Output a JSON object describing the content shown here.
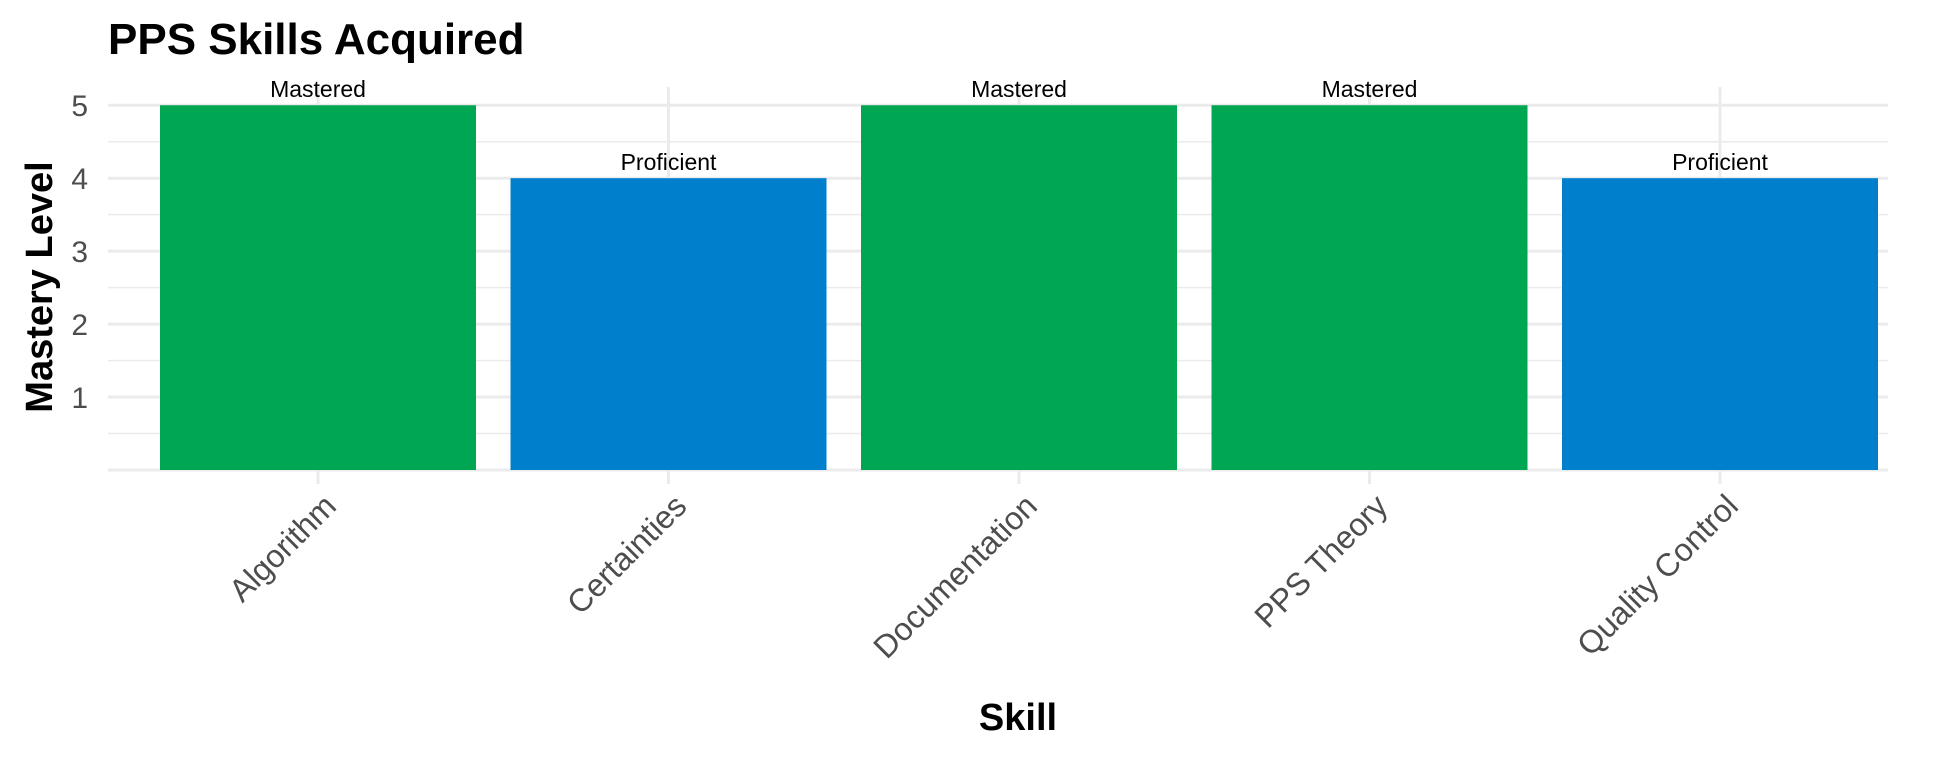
{
  "chart_data": {
    "type": "bar",
    "title": "PPS Skills Acquired",
    "xlabel": "Skill",
    "ylabel": "Mastery Level",
    "categories": [
      "Algorithm",
      "Certainties",
      "Documentation",
      "PPS Theory",
      "Quality Control"
    ],
    "values": [
      5,
      4,
      5,
      5,
      4
    ],
    "bar_labels": [
      "Mastered",
      "Proficient",
      "Mastered",
      "Mastered",
      "Proficient"
    ],
    "bar_colors": [
      "#00A651",
      "#0080CC",
      "#00A651",
      "#00A651",
      "#0080CC"
    ],
    "yticks": [
      1,
      2,
      3,
      4,
      5
    ],
    "ylim": [
      0,
      5.25
    ],
    "grid": true,
    "legend": "none"
  },
  "colors": {
    "mastered": "#00A651",
    "proficient": "#0080CC",
    "grid": "#EBEBEB",
    "tick_text": "#4D4D4D"
  }
}
